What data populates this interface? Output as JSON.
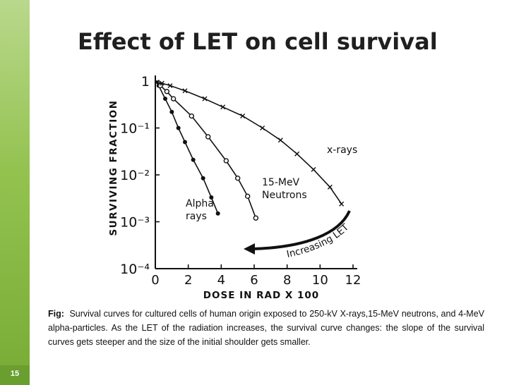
{
  "slide": {
    "title": "Effect of LET on cell survival",
    "number": "15",
    "sidebar_color": "#8bbd4a"
  },
  "caption": {
    "label": "Fig:",
    "text": "Survival curves for cultured cells of human origin exposed to 250-kV X-rays,15-MeV neutrons, and 4-MeV alpha-particles. As the LET of the radiation increases, the survival curve changes: the slope of the survival curves gets steeper and the size of the initial shoulder gets smaller."
  },
  "chart_data": {
    "type": "scatter",
    "xlabel": "DOSE IN RAD  X 100",
    "ylabel": "SURVIVING FRACTION",
    "xlim": [
      0,
      12
    ],
    "ylim": [
      0.0001,
      1
    ],
    "yscale": "log",
    "x_ticks": [
      "0",
      "2",
      "4",
      "6",
      "8",
      "10",
      "12"
    ],
    "y_ticks": [
      "1",
      "10⁻¹",
      "10⁻²",
      "10⁻³",
      "10⁻⁴"
    ],
    "series": [
      {
        "name": "Alpha rays",
        "label_lines": [
          "Alpha",
          "rays"
        ],
        "marker": "filled-circle",
        "x": [
          0.2,
          0.6,
          1.0,
          1.4,
          1.8,
          2.3,
          2.9,
          3.4,
          3.8
        ],
        "y": [
          0.8,
          0.42,
          0.22,
          0.1,
          0.05,
          0.021,
          0.0085,
          0.0033,
          0.0015
        ]
      },
      {
        "name": "15-MeV Neutrons",
        "label_lines": [
          "15-MeV",
          "Neutrons"
        ],
        "marker": "open-circle",
        "x": [
          0.3,
          0.7,
          1.1,
          2.2,
          3.2,
          4.3,
          5.0,
          5.6,
          6.1
        ],
        "y": [
          0.8,
          0.6,
          0.42,
          0.18,
          0.065,
          0.02,
          0.0085,
          0.0035,
          0.0012
        ]
      },
      {
        "name": "x-rays",
        "label_lines": [
          "x-rays"
        ],
        "marker": "cross",
        "x": [
          0.1,
          0.4,
          0.9,
          1.8,
          3.0,
          4.1,
          5.3,
          6.5,
          7.6,
          8.6,
          9.6,
          10.6,
          11.3
        ],
        "y": [
          0.95,
          0.9,
          0.8,
          0.62,
          0.42,
          0.28,
          0.18,
          0.1,
          0.055,
          0.028,
          0.013,
          0.0055,
          0.0024
        ]
      }
    ],
    "annotations": [
      {
        "text": "Increasing LET",
        "style": "curved-arrow"
      }
    ],
    "grid": false
  }
}
